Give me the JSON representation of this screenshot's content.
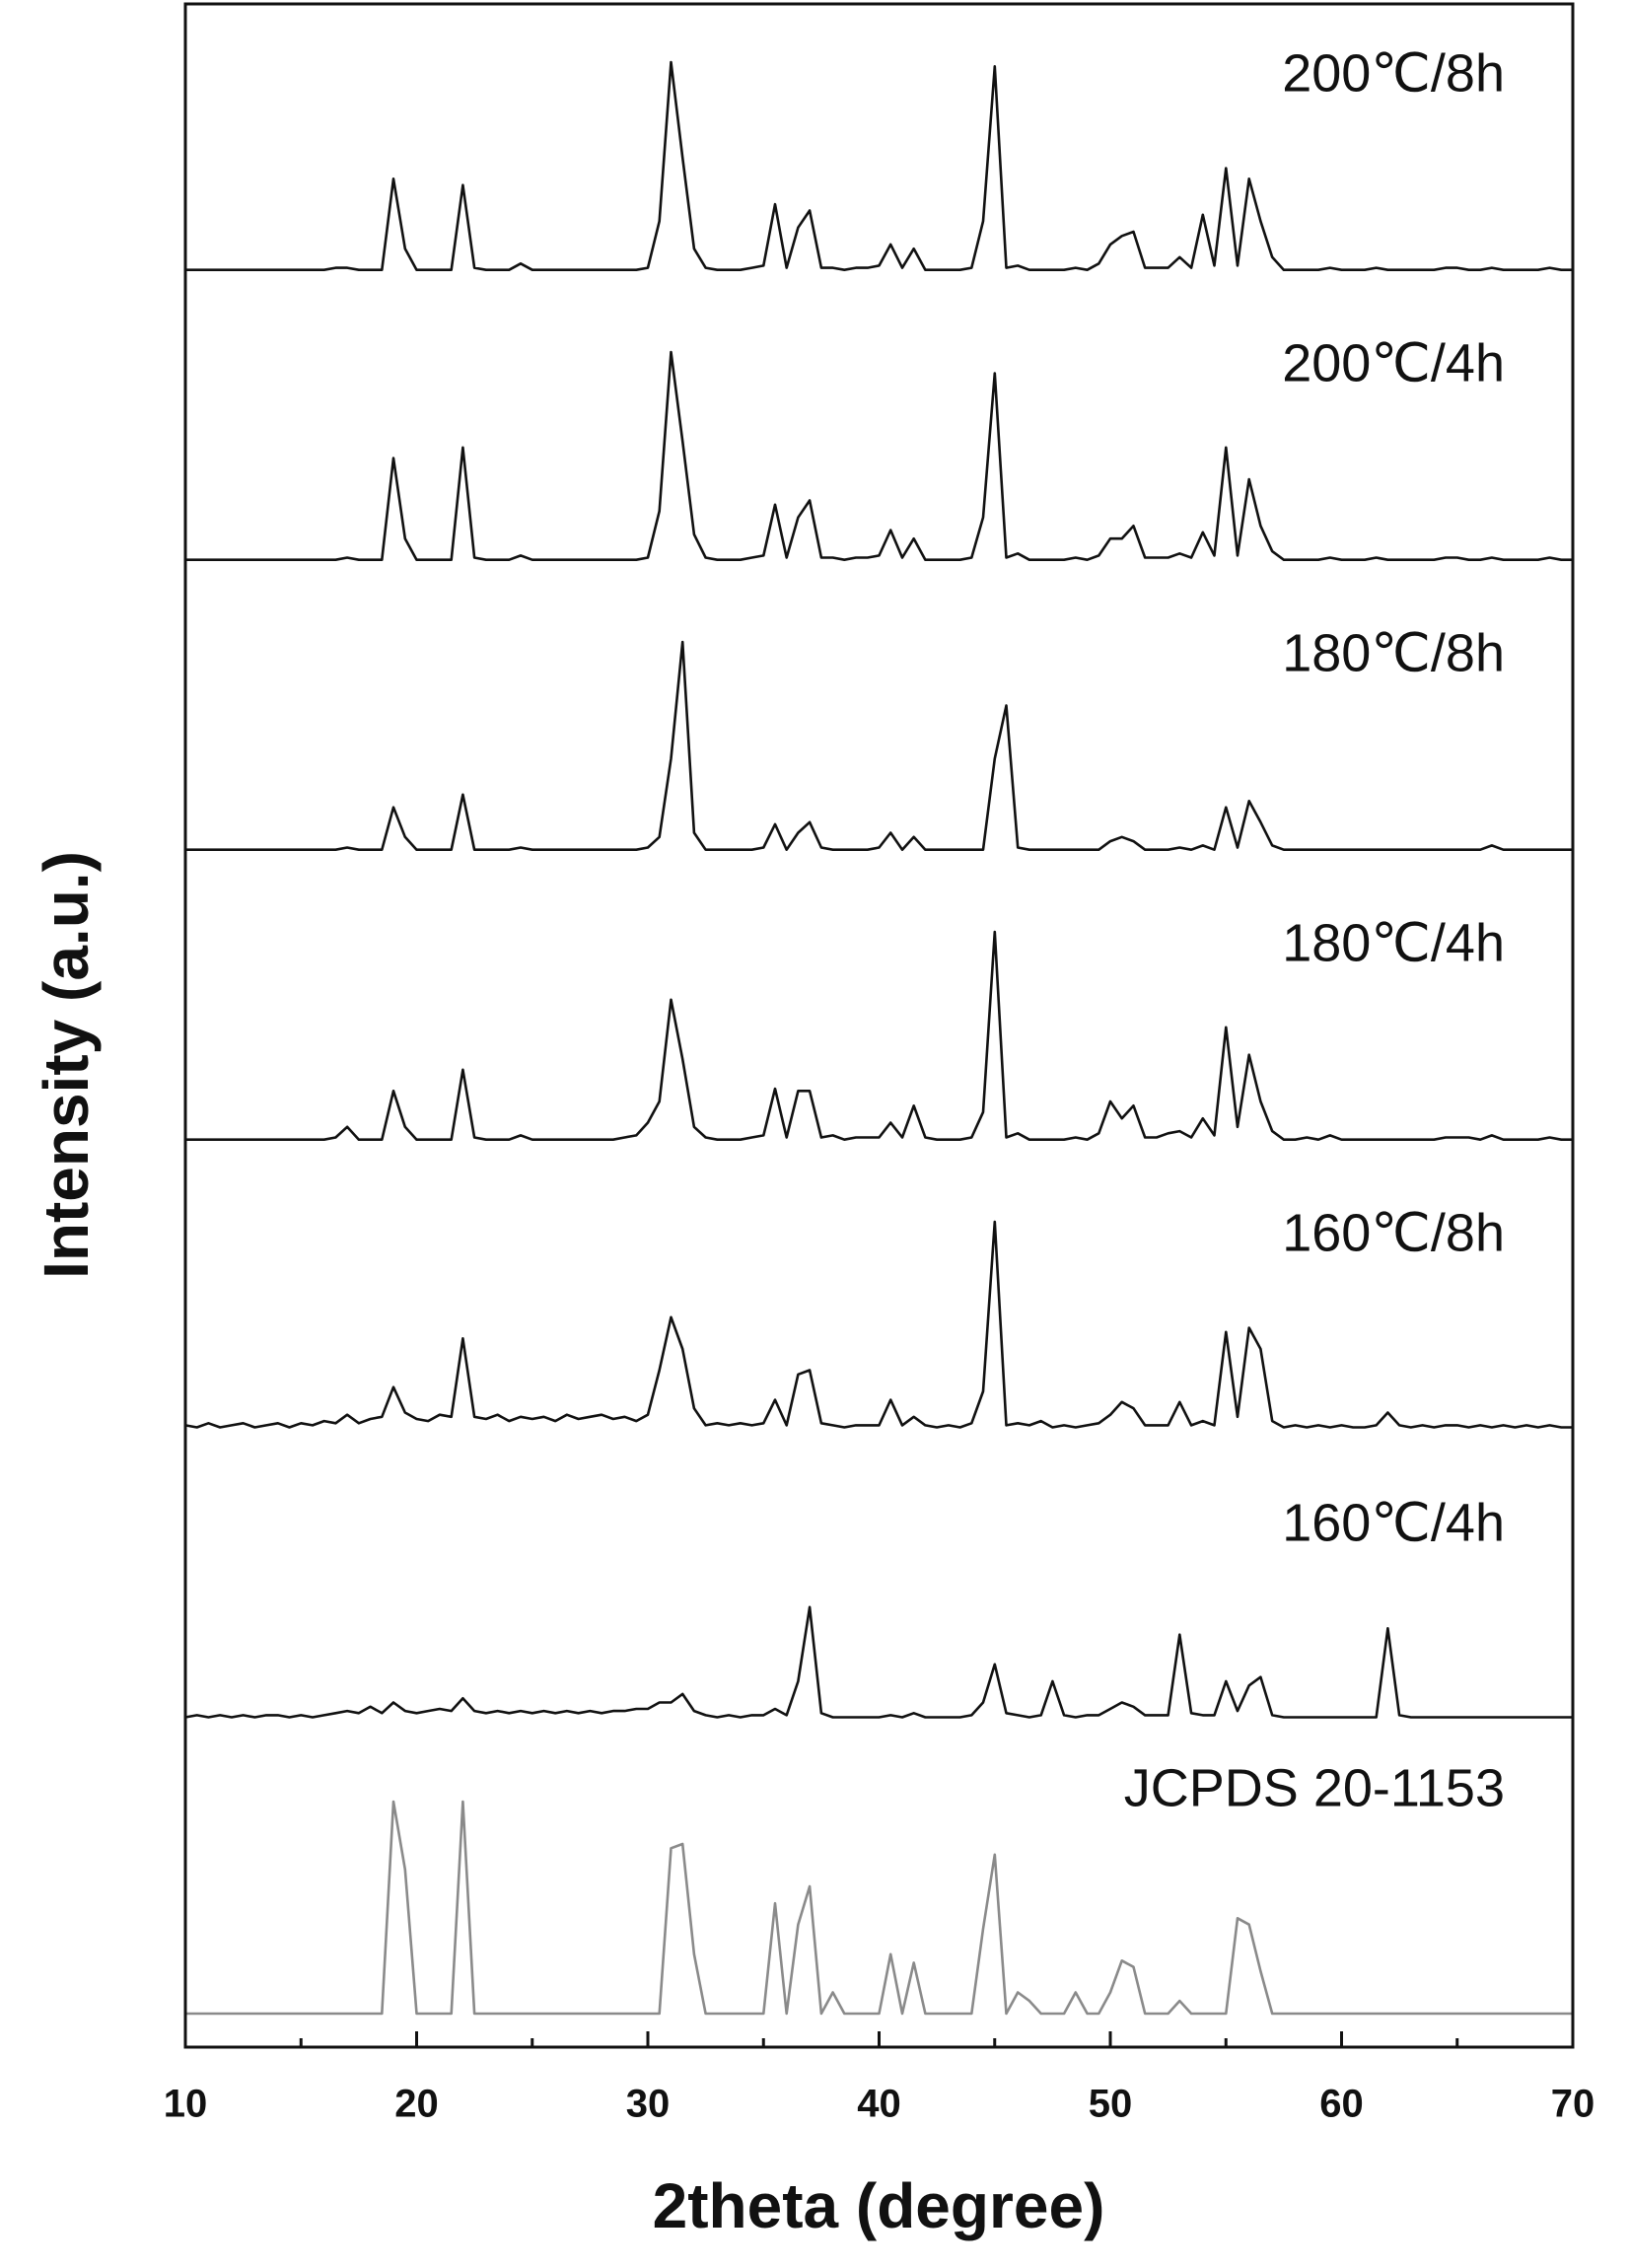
{
  "chart_data": {
    "type": "line",
    "xlabel": "2theta (degree)",
    "ylabel": "Intensity (a.u.)",
    "xlim": [
      10,
      70
    ],
    "xticks": [
      10,
      20,
      30,
      40,
      50,
      60,
      70
    ],
    "xminor_ticks": [
      15,
      25,
      35,
      45,
      55,
      65
    ],
    "x": [
      10,
      10.5,
      11,
      11.5,
      12,
      12.5,
      13,
      13.5,
      14,
      14.5,
      15,
      15.5,
      16,
      16.5,
      17,
      17.5,
      18,
      18.5,
      19,
      19.5,
      20,
      20.5,
      21,
      21.5,
      22,
      22.5,
      23,
      23.5,
      24,
      24.5,
      25,
      25.5,
      26,
      26.5,
      27,
      27.5,
      28,
      28.5,
      29,
      29.5,
      30,
      30.5,
      31,
      31.5,
      32,
      32.5,
      33,
      33.5,
      34,
      34.5,
      35,
      35.5,
      36,
      36.5,
      37,
      37.5,
      38,
      38.5,
      39,
      39.5,
      40,
      40.5,
      41,
      41.5,
      42,
      42.5,
      43,
      43.5,
      44,
      44.5,
      45,
      45.5,
      46,
      46.5,
      47,
      47.5,
      48,
      48.5,
      49,
      49.5,
      50,
      50.5,
      51,
      51.5,
      52,
      52.5,
      53,
      53.5,
      54,
      54.5,
      55,
      55.5,
      56,
      56.5,
      57,
      57.5,
      58,
      58.5,
      59,
      59.5,
      60,
      60.5,
      61,
      61.5,
      62,
      62.5,
      63,
      63.5,
      64,
      64.5,
      65,
      65.5,
      66,
      66.5,
      67,
      67.5,
      68,
      68.5,
      69,
      69.5,
      70
    ],
    "series": [
      {
        "name": "200℃/8h",
        "color": "#111111",
        "values": [
          2,
          2,
          2,
          2,
          2,
          2,
          2,
          2,
          2,
          2,
          2,
          2,
          2,
          3,
          3,
          2,
          2,
          2,
          45,
          12,
          2,
          2,
          2,
          2,
          42,
          3,
          2,
          2,
          2,
          5,
          2,
          2,
          2,
          2,
          2,
          2,
          2,
          2,
          2,
          2,
          3,
          25,
          100,
          55,
          12,
          3,
          2,
          2,
          2,
          3,
          4,
          33,
          3,
          22,
          30,
          3,
          3,
          2,
          3,
          3,
          4,
          14,
          3,
          12,
          2,
          2,
          2,
          2,
          3,
          25,
          98,
          3,
          4,
          2,
          2,
          2,
          2,
          3,
          2,
          5,
          14,
          18,
          20,
          3,
          3,
          3,
          8,
          3,
          28,
          4,
          50,
          4,
          45,
          25,
          8,
          2,
          2,
          2,
          2,
          3,
          2,
          2,
          2,
          3,
          2,
          2,
          2,
          2,
          2,
          3,
          3,
          2,
          2,
          3,
          2,
          2,
          2,
          2,
          3,
          2,
          2
        ]
      },
      {
        "name": "200℃/4h",
        "color": "#111111",
        "values": [
          2,
          2,
          2,
          2,
          2,
          2,
          2,
          2,
          2,
          2,
          2,
          2,
          2,
          2,
          3,
          2,
          2,
          2,
          50,
          12,
          2,
          2,
          2,
          2,
          55,
          3,
          2,
          2,
          2,
          4,
          2,
          2,
          2,
          2,
          2,
          2,
          2,
          2,
          2,
          2,
          3,
          25,
          100,
          58,
          14,
          3,
          2,
          2,
          2,
          3,
          4,
          28,
          3,
          22,
          30,
          3,
          3,
          2,
          3,
          3,
          4,
          16,
          3,
          12,
          2,
          2,
          2,
          2,
          3,
          22,
          90,
          3,
          5,
          2,
          2,
          2,
          2,
          3,
          2,
          4,
          12,
          12,
          18,
          3,
          3,
          3,
          5,
          3,
          15,
          4,
          55,
          4,
          40,
          18,
          6,
          2,
          2,
          2,
          2,
          3,
          2,
          2,
          2,
          3,
          2,
          2,
          2,
          2,
          2,
          3,
          3,
          2,
          2,
          3,
          2,
          2,
          2,
          2,
          3,
          2,
          2
        ]
      },
      {
        "name": "180℃/8h",
        "color": "#111111",
        "values": [
          2,
          2,
          2,
          2,
          2,
          2,
          2,
          2,
          2,
          2,
          2,
          2,
          2,
          2,
          3,
          2,
          2,
          2,
          22,
          8,
          2,
          2,
          2,
          2,
          28,
          2,
          2,
          2,
          2,
          3,
          2,
          2,
          2,
          2,
          2,
          2,
          2,
          2,
          2,
          2,
          3,
          8,
          45,
          100,
          10,
          2,
          2,
          2,
          2,
          2,
          3,
          14,
          2,
          10,
          15,
          3,
          2,
          2,
          2,
          2,
          3,
          10,
          2,
          8,
          2,
          2,
          2,
          2,
          2,
          2,
          45,
          70,
          3,
          2,
          2,
          2,
          2,
          2,
          2,
          2,
          6,
          8,
          6,
          2,
          2,
          2,
          3,
          2,
          4,
          2,
          22,
          3,
          25,
          15,
          4,
          2,
          2,
          2,
          2,
          2,
          2,
          2,
          2,
          2,
          2,
          2,
          2,
          2,
          2,
          2,
          2,
          2,
          2,
          4,
          2,
          2,
          2,
          2,
          2,
          2,
          2
        ]
      },
      {
        "name": "180℃/4h",
        "color": "#111111",
        "values": [
          2,
          2,
          2,
          2,
          2,
          2,
          2,
          2,
          2,
          2,
          2,
          2,
          2,
          3,
          8,
          2,
          2,
          2,
          25,
          8,
          2,
          2,
          2,
          2,
          35,
          3,
          2,
          2,
          2,
          4,
          2,
          2,
          2,
          2,
          2,
          2,
          2,
          2,
          3,
          4,
          10,
          20,
          68,
          40,
          8,
          3,
          2,
          2,
          2,
          3,
          4,
          26,
          3,
          25,
          25,
          3,
          4,
          2,
          3,
          3,
          3,
          10,
          3,
          18,
          3,
          2,
          2,
          2,
          3,
          15,
          100,
          3,
          5,
          2,
          2,
          2,
          2,
          3,
          2,
          5,
          20,
          12,
          18,
          3,
          3,
          5,
          6,
          3,
          12,
          4,
          55,
          8,
          42,
          20,
          6,
          2,
          2,
          3,
          2,
          4,
          2,
          2,
          2,
          2,
          2,
          2,
          2,
          2,
          2,
          3,
          3,
          3,
          2,
          4,
          2,
          2,
          2,
          2,
          3,
          2,
          2
        ]
      },
      {
        "name": "160℃/8h",
        "color": "#111111",
        "values": [
          4,
          3,
          5,
          3,
          4,
          5,
          3,
          4,
          5,
          3,
          5,
          4,
          6,
          5,
          9,
          5,
          7,
          8,
          22,
          10,
          7,
          6,
          9,
          8,
          45,
          8,
          7,
          9,
          6,
          8,
          7,
          8,
          6,
          9,
          7,
          8,
          9,
          7,
          8,
          6,
          9,
          30,
          55,
          40,
          12,
          4,
          5,
          4,
          5,
          4,
          5,
          16,
          4,
          28,
          30,
          5,
          4,
          3,
          4,
          4,
          4,
          16,
          4,
          8,
          4,
          3,
          4,
          3,
          5,
          20,
          100,
          4,
          5,
          4,
          6,
          3,
          4,
          3,
          4,
          5,
          9,
          15,
          12,
          4,
          4,
          4,
          15,
          4,
          6,
          4,
          48,
          8,
          50,
          40,
          6,
          3,
          4,
          3,
          4,
          3,
          4,
          3,
          3,
          4,
          10,
          4,
          3,
          4,
          3,
          4,
          4,
          3,
          4,
          3,
          4,
          3,
          4,
          3,
          4,
          3,
          3
        ]
      },
      {
        "name": "160℃/4h",
        "color": "#111111",
        "values": [
          3,
          4,
          3,
          4,
          3,
          4,
          3,
          4,
          4,
          3,
          4,
          3,
          4,
          5,
          6,
          5,
          8,
          5,
          10,
          6,
          5,
          6,
          7,
          6,
          12,
          6,
          5,
          6,
          5,
          6,
          5,
          6,
          5,
          6,
          5,
          6,
          5,
          6,
          6,
          7,
          7,
          10,
          10,
          14,
          6,
          4,
          3,
          4,
          3,
          4,
          4,
          7,
          4,
          20,
          55,
          5,
          3,
          3,
          3,
          3,
          3,
          4,
          3,
          5,
          3,
          3,
          3,
          3,
          4,
          10,
          28,
          5,
          4,
          3,
          4,
          20,
          4,
          3,
          4,
          4,
          7,
          10,
          8,
          4,
          4,
          4,
          42,
          5,
          4,
          4,
          20,
          6,
          18,
          22,
          4,
          3,
          3,
          3,
          3,
          3,
          3,
          3,
          3,
          3,
          45,
          4,
          3,
          3,
          3,
          3,
          3,
          3,
          3,
          3,
          3,
          3,
          3,
          3,
          3,
          3,
          3
        ]
      },
      {
        "name": "JCPDS 20-1153",
        "color": "#8a8a8a",
        "values": [
          0,
          0,
          0,
          0,
          0,
          0,
          0,
          0,
          0,
          0,
          0,
          0,
          0,
          0,
          0,
          0,
          0,
          0,
          100,
          68,
          0,
          0,
          0,
          0,
          100,
          0,
          0,
          0,
          0,
          0,
          0,
          0,
          0,
          0,
          0,
          0,
          0,
          0,
          0,
          0,
          0,
          0,
          78,
          80,
          28,
          0,
          0,
          0,
          0,
          0,
          0,
          52,
          0,
          42,
          60,
          0,
          10,
          0,
          0,
          0,
          0,
          28,
          0,
          24,
          0,
          0,
          0,
          0,
          0,
          40,
          75,
          0,
          10,
          6,
          0,
          0,
          0,
          10,
          0,
          0,
          10,
          25,
          22,
          0,
          0,
          0,
          6,
          0,
          0,
          0,
          0,
          45,
          42,
          20,
          0,
          0,
          0,
          0,
          0,
          0,
          0,
          0,
          0,
          0,
          0,
          0,
          0,
          0,
          0,
          0,
          0,
          0,
          0,
          0,
          0,
          0,
          0,
          0,
          0,
          0,
          0
        ]
      }
    ]
  }
}
